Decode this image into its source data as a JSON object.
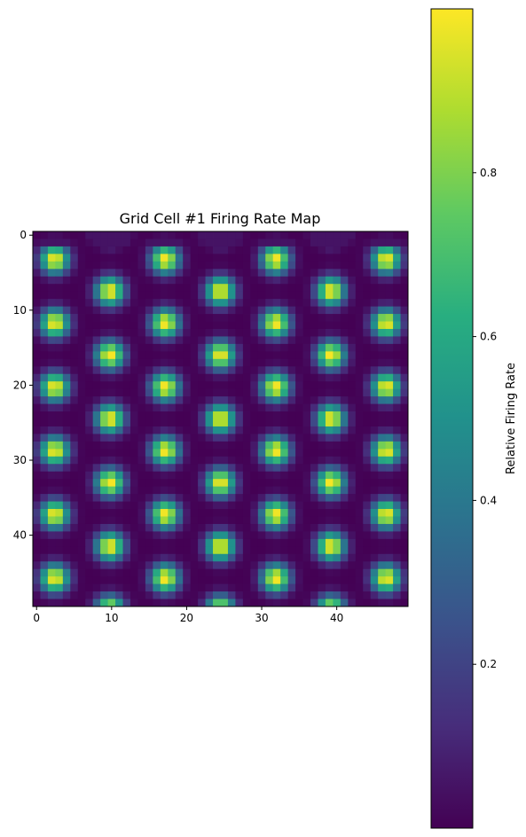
{
  "chart_data": {
    "type": "heatmap",
    "title": "Grid Cell #1 Firing Rate Map",
    "xlabel": "",
    "ylabel": "",
    "grid_size": [
      50,
      50
    ],
    "xlim": [
      -0.5,
      49.5
    ],
    "ylim": [
      49.5,
      -0.5
    ],
    "x_ticks": [
      0,
      10,
      20,
      30,
      40
    ],
    "y_ticks": [
      0,
      10,
      20,
      30,
      40
    ],
    "x_tick_labels": [
      "0",
      "10",
      "20",
      "30",
      "40"
    ],
    "y_tick_labels": [
      "0",
      "10",
      "20",
      "30",
      "40"
    ],
    "colormap": "viridis",
    "value_range": [
      0.0,
      1.0
    ],
    "pattern": {
      "field_spacing": 8.5,
      "orientation_deg": 0,
      "center": [
        24.5,
        24.5
      ],
      "peak_value": 1.0,
      "description_note": ""
    },
    "grid": false,
    "colorbar": {
      "label": "Relative Firing Rate",
      "ticks": [
        0.2,
        0.4,
        0.6,
        0.8
      ],
      "tick_labels": [
        "0.2",
        "0.4",
        "0.6",
        "0.8"
      ],
      "range": [
        0.0,
        1.0
      ],
      "placement": "right"
    }
  }
}
